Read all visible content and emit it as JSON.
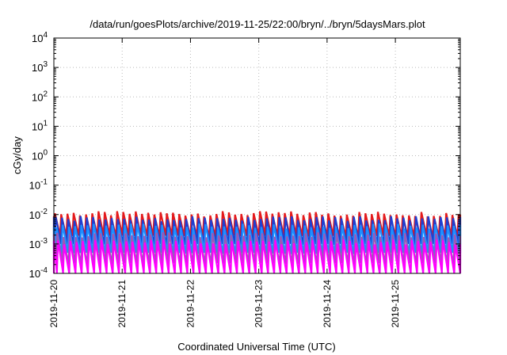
{
  "chart_data": {
    "type": "line",
    "title": "/data/run/goesPlots/archive/2019-11-25/22:00/bryn/../bryn/5daysMars.plot",
    "xlabel": "Coordinated Universal Time (UTC)",
    "ylabel": "cGy/day",
    "y_scale": "log",
    "ylim": [
      0.0001,
      10000
    ],
    "y_ticks": [
      {
        "base": "10",
        "exp": "-4"
      },
      {
        "base": "10",
        "exp": "-3"
      },
      {
        "base": "10",
        "exp": "-2"
      },
      {
        "base": "10",
        "exp": "-1"
      },
      {
        "base": "10",
        "exp": "0"
      },
      {
        "base": "10",
        "exp": "1"
      },
      {
        "base": "10",
        "exp": "2"
      },
      {
        "base": "10",
        "exp": "3"
      },
      {
        "base": "10",
        "exp": "4"
      }
    ],
    "x_range_days": [
      0,
      5.95
    ],
    "x_ticks": [
      {
        "label": "2019-11-20",
        "day": 0
      },
      {
        "label": "2019-11-21",
        "day": 1
      },
      {
        "label": "2019-11-22",
        "day": 2
      },
      {
        "label": "2019-11-23",
        "day": 3
      },
      {
        "label": "2019-11-24",
        "day": 4
      },
      {
        "label": "2019-11-25",
        "day": 5
      }
    ],
    "grid": true,
    "cycles_per_day": 11,
    "series": [
      {
        "color": "#e41a1c",
        "min": 0.0019,
        "max": 0.011
      },
      {
        "color": "#1f3fd1",
        "min": 0.001,
        "max": 0.0075
      },
      {
        "color": "#1e90ff",
        "min": 0.0005,
        "max": 0.0042
      },
      {
        "color": "#9b59b6",
        "min": 0.00022,
        "max": 0.0021
      },
      {
        "color": "#ff00ff",
        "min": 0.0001,
        "max": 0.0012
      }
    ]
  }
}
